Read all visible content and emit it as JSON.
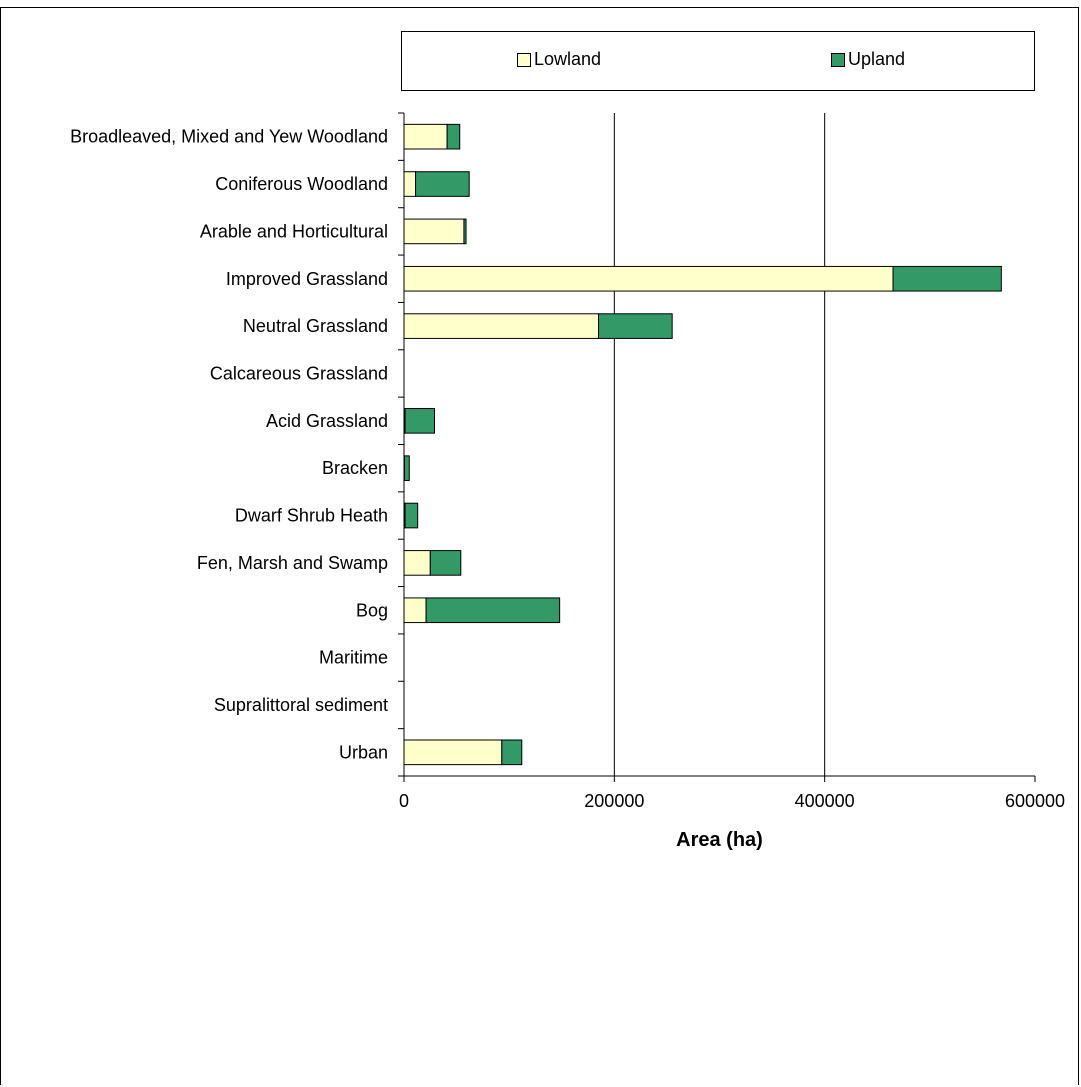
{
  "chart_data": {
    "type": "bar",
    "orientation": "horizontal",
    "stacked": true,
    "categories": [
      "Broadleaved, Mixed and Yew Woodland",
      "Coniferous Woodland",
      "Arable and Horticultural",
      "Improved Grassland",
      "Neutral Grassland",
      "Calcareous Grassland",
      "Acid Grassland",
      "Bracken",
      "Dwarf Shrub Heath",
      "Fen, Marsh and Swamp",
      "Bog",
      "Maritime",
      "Supralittoral sediment",
      "Urban"
    ],
    "series": [
      {
        "name": "Lowland",
        "color": "#ffffcc",
        "values": [
          41000,
          11000,
          57000,
          465000,
          185000,
          0,
          1000,
          500,
          1000,
          25000,
          21000,
          0,
          0,
          93000
        ]
      },
      {
        "name": "Upland",
        "color": "#339966",
        "values": [
          12000,
          51000,
          2000,
          103000,
          70000,
          0,
          28000,
          4500,
          12000,
          29000,
          127000,
          0,
          0,
          19000
        ]
      }
    ],
    "xlabel": "Area (ha)",
    "ylabel": "",
    "xlim": [
      0,
      600000
    ],
    "x_ticks": [
      "0",
      "200000",
      "400000",
      "600000"
    ],
    "grid": "vertical",
    "legend_position": "top"
  }
}
